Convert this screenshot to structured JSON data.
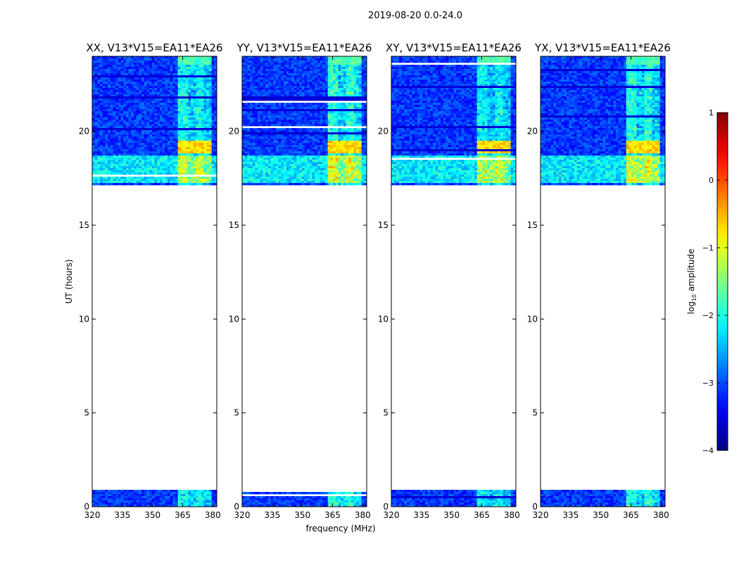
{
  "figure_title": "2019-08-20 0.0-24.0",
  "chart_data": {
    "type": "heatmap",
    "suptitle": "2019-08-20 0.0-24.0",
    "xlabel": "frequency (MHz)",
    "ylabel": "UT (hours)",
    "x_range": [
      320,
      382
    ],
    "y_range": [
      0,
      24
    ],
    "x_ticks": [
      320,
      335,
      350,
      365,
      380
    ],
    "y_ticks": [
      0,
      5,
      10,
      15,
      20
    ],
    "data_coverage_hours": [
      [
        0.0,
        0.9
      ],
      [
        17.2,
        24.0
      ]
    ],
    "panels": [
      {
        "title": "XX, V13*V15=EA11*EA26",
        "strong_band_mhz": [
          363,
          380
        ],
        "level": 1.0
      },
      {
        "title": "YY, V13*V15=EA11*EA26",
        "strong_band_mhz": [
          363,
          380
        ],
        "level": 1.15
      },
      {
        "title": "XY, V13*V15=EA11*EA26",
        "strong_band_mhz": [
          363,
          380
        ],
        "level": 0.95
      },
      {
        "title": "YX, V13*V15=EA11*EA26",
        "strong_band_mhz": [
          363,
          380
        ],
        "level": 1.1
      }
    ],
    "colorbar": {
      "label": "log10 amplitude",
      "label_main": "log",
      "label_sub": "10",
      "label_tail": " amplitude",
      "range": [
        -4,
        1
      ],
      "ticks": [
        1,
        0,
        -1,
        -2,
        -3,
        -4
      ],
      "tick_labels": [
        "1",
        "0",
        "−1",
        "−2",
        "−3",
        "−4"
      ],
      "colormap": "jet"
    }
  }
}
